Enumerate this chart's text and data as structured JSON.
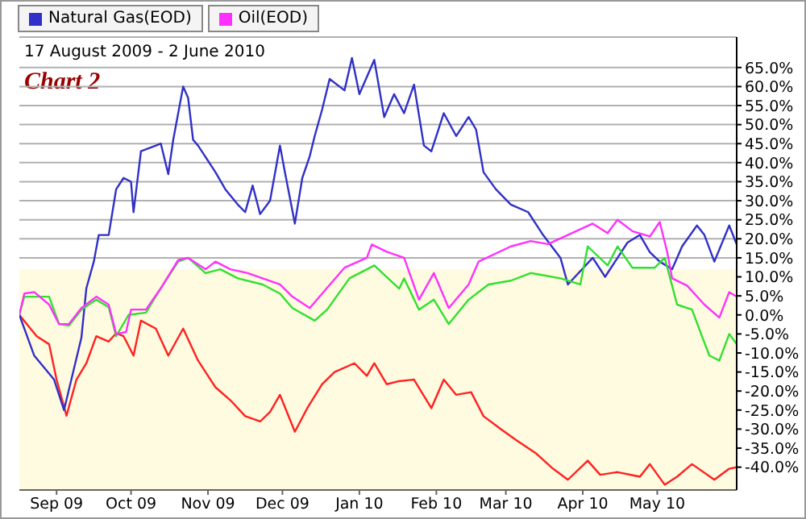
{
  "chart_data": {
    "type": "line",
    "title": "Chart 2",
    "subtitle": "17 August 2009 - 2 June 2010",
    "xlim": [
      "2009-08-17",
      "2010-06-02"
    ],
    "xticks": [
      {
        "value": "2009-09-01",
        "label": "Sep 09"
      },
      {
        "value": "2009-10-01",
        "label": "Oct 09"
      },
      {
        "value": "2009-11-01",
        "label": "Nov 09"
      },
      {
        "value": "2009-12-01",
        "label": "Dec 09"
      },
      {
        "value": "2010-01-01",
        "label": "Jan 10"
      },
      {
        "value": "2010-02-01",
        "label": "Feb 10"
      },
      {
        "value": "2010-03-01",
        "label": "Mar 10"
      },
      {
        "value": "2010-04-01",
        "label": "Apr 10"
      },
      {
        "value": "2010-05-01",
        "label": "May 10"
      }
    ],
    "ylim": [
      -46,
      73
    ],
    "yticks": [
      {
        "value": -40,
        "label": "-40.0%"
      },
      {
        "value": -35,
        "label": "-35.0%"
      },
      {
        "value": -30,
        "label": "-30.0%"
      },
      {
        "value": -25,
        "label": "-25.0%"
      },
      {
        "value": -20,
        "label": "-20.0%"
      },
      {
        "value": -15,
        "label": "-15.0%"
      },
      {
        "value": -10,
        "label": "-10.0%"
      },
      {
        "value": -5,
        "label": "-5.0%"
      },
      {
        "value": 0,
        "label": "0.0%"
      },
      {
        "value": 5,
        "label": "5.0%"
      },
      {
        "value": 10,
        "label": "10.0%"
      },
      {
        "value": 15,
        "label": "15.0%"
      },
      {
        "value": 20,
        "label": "20.0%"
      },
      {
        "value": 25,
        "label": "25.0%"
      },
      {
        "value": 30,
        "label": "30.0%"
      },
      {
        "value": 35,
        "label": "35.0%"
      },
      {
        "value": 40,
        "label": "40.0%"
      },
      {
        "value": 45,
        "label": "45.0%"
      },
      {
        "value": 50,
        "label": "50.0%"
      },
      {
        "value": 55,
        "label": "55.0%"
      },
      {
        "value": 60,
        "label": "60.0%"
      },
      {
        "value": 65,
        "label": "65.0%"
      }
    ],
    "grid": "y",
    "legend": "top",
    "marker": "none",
    "line_style": "solid",
    "bands": [
      {
        "axis": "y",
        "from": -46,
        "to": 12,
        "color": "#fffbe0"
      }
    ],
    "series": [
      {
        "color": "#ff2020",
        "x": [
          "2009-08-17",
          "2009-08-24",
          "2009-08-29",
          "2009-09-01",
          "2009-09-05",
          "2009-09-09",
          "2009-09-13",
          "2009-09-17",
          "2009-09-22",
          "2009-09-25",
          "2009-09-28",
          "2009-10-02",
          "2009-10-05",
          "2009-10-11",
          "2009-10-16",
          "2009-10-22",
          "2009-10-28",
          "2009-11-04",
          "2009-11-10",
          "2009-11-16",
          "2009-11-22",
          "2009-11-26",
          "2009-11-30",
          "2009-12-06",
          "2009-12-11",
          "2009-12-17",
          "2009-12-22",
          "2009-12-30",
          "2010-01-04",
          "2010-01-07",
          "2010-01-12",
          "2010-01-17",
          "2010-01-23",
          "2010-01-30",
          "2010-02-04",
          "2010-02-09",
          "2010-02-15",
          "2010-02-20",
          "2010-02-27",
          "2010-03-05",
          "2010-03-13",
          "2010-03-20",
          "2010-03-26",
          "2010-04-03",
          "2010-04-08",
          "2010-04-15",
          "2010-04-24",
          "2010-04-28",
          "2010-05-04",
          "2010-05-09",
          "2010-05-15",
          "2010-05-24",
          "2010-05-30",
          "2010-06-02"
        ],
        "values": [
          0,
          -5.6,
          -7.7,
          -17,
          -26.5,
          -17,
          -12.7,
          -5.6,
          -7,
          -4.8,
          -5.6,
          -10.7,
          -1.5,
          -3.6,
          -10.7,
          -3.6,
          -12,
          -19,
          -22.4,
          -26.6,
          -28,
          -25.5,
          -21,
          -30.7,
          -24.5,
          -18.2,
          -15,
          -12.7,
          -16,
          -12.7,
          -18.2,
          -17.4,
          -17,
          -24.5,
          -17,
          -21,
          -20.3,
          -26.6,
          -30,
          -32.8,
          -36.3,
          -40.4,
          -43.3,
          -38.3,
          -42,
          -41.3,
          -42.5,
          -39.2,
          -44.6,
          -42.5,
          -39.2,
          -43.3,
          -40.4,
          -40
        ]
      },
      {
        "name": "Natural Gas(EOD)",
        "color": "#3030c8",
        "x": [
          "2009-08-17",
          "2009-08-23",
          "2009-08-31",
          "2009-09-04",
          "2009-09-11",
          "2009-09-13",
          "2009-09-16",
          "2009-09-18",
          "2009-09-22",
          "2009-09-25",
          "2009-09-28",
          "2009-10-01",
          "2009-10-02",
          "2009-10-05",
          "2009-10-11",
          "2009-10-13",
          "2009-10-16",
          "2009-10-18",
          "2009-10-22",
          "2009-10-24",
          "2009-10-26",
          "2009-10-28",
          "2009-11-04",
          "2009-11-08",
          "2009-11-13",
          "2009-11-16",
          "2009-11-19",
          "2009-11-22",
          "2009-11-26",
          "2009-11-30",
          "2009-12-02",
          "2009-12-06",
          "2009-12-09",
          "2009-12-12",
          "2009-12-14",
          "2009-12-17",
          "2009-12-20",
          "2009-12-26",
          "2009-12-29",
          "2010-01-01",
          "2010-01-07",
          "2010-01-11",
          "2010-01-15",
          "2010-01-19",
          "2010-01-23",
          "2010-01-27",
          "2010-01-30",
          "2010-02-04",
          "2010-02-09",
          "2010-02-14",
          "2010-02-17",
          "2010-02-20",
          "2010-02-25",
          "2010-03-03",
          "2010-03-10",
          "2010-03-16",
          "2010-03-23",
          "2010-03-26",
          "2010-04-05",
          "2010-04-10",
          "2010-04-19",
          "2010-04-24",
          "2010-04-28",
          "2010-05-02",
          "2010-05-07",
          "2010-05-11",
          "2010-05-17",
          "2010-05-20",
          "2010-05-24",
          "2010-05-30",
          "2010-06-02"
        ],
        "values": [
          0,
          -10.7,
          -17,
          -25,
          -6,
          7,
          14,
          21,
          21,
          33,
          36,
          35,
          27,
          43,
          44.5,
          45,
          37,
          46,
          60,
          57,
          46,
          44.5,
          37.5,
          33,
          29,
          27,
          34,
          26.5,
          30,
          44.5,
          37.5,
          24,
          36,
          41.7,
          47,
          54,
          62,
          59,
          67.5,
          58,
          67,
          52,
          58,
          53,
          60.5,
          44.5,
          43,
          53,
          47,
          52,
          48.7,
          37.5,
          33,
          29,
          27,
          21,
          15,
          8,
          15,
          10,
          19,
          21,
          16.5,
          14,
          12,
          18,
          23.5,
          21,
          14,
          23.5,
          18.5
        ]
      },
      {
        "color": "#30e030",
        "x": [
          "2009-08-17",
          "2009-08-19",
          "2009-08-29",
          "2009-09-02",
          "2009-09-06",
          "2009-09-11",
          "2009-09-17",
          "2009-09-22",
          "2009-09-25",
          "2009-09-30",
          "2009-10-07",
          "2009-10-13",
          "2009-10-20",
          "2009-10-24",
          "2009-10-31",
          "2009-11-06",
          "2009-11-13",
          "2009-11-23",
          "2009-11-30",
          "2009-12-05",
          "2009-12-14",
          "2009-12-19",
          "2009-12-28",
          "2010-01-07",
          "2010-01-17",
          "2010-01-19",
          "2010-01-25",
          "2010-01-31",
          "2010-02-06",
          "2010-02-14",
          "2010-02-22",
          "2010-03-03",
          "2010-03-11",
          "2010-03-23",
          "2010-03-31",
          "2010-04-03",
          "2010-04-11",
          "2010-04-15",
          "2010-04-21",
          "2010-04-30",
          "2010-05-04",
          "2010-05-09",
          "2010-05-15",
          "2010-05-19",
          "2010-05-22",
          "2010-05-26",
          "2010-05-30",
          "2010-06-02"
        ],
        "values": [
          0,
          4.8,
          4.8,
          -2.4,
          -2.8,
          1.4,
          4,
          2,
          -5.6,
          0,
          0.6,
          7,
          14,
          15,
          11,
          12,
          9.6,
          8,
          5.6,
          1.8,
          -1.5,
          1.4,
          9.6,
          13,
          6.9,
          9.6,
          1.4,
          4,
          -2.4,
          4,
          8,
          9,
          11,
          9.6,
          8,
          18,
          13,
          18,
          12.4,
          12.4,
          15,
          2.7,
          1.4,
          -5.6,
          -10.7,
          -12,
          -5,
          -7.7
        ]
      },
      {
        "name": "Oil(EOD)",
        "color": "#ff30ff",
        "x": [
          "2009-08-17",
          "2009-08-19",
          "2009-08-23",
          "2009-08-29",
          "2009-09-02",
          "2009-09-06",
          "2009-09-11",
          "2009-09-17",
          "2009-09-22",
          "2009-09-25",
          "2009-09-29",
          "2009-10-01",
          "2009-10-07",
          "2009-10-13",
          "2009-10-20",
          "2009-10-24",
          "2009-10-31",
          "2009-11-04",
          "2009-11-10",
          "2009-11-17",
          "2009-11-23",
          "2009-11-30",
          "2009-12-05",
          "2009-12-12",
          "2009-12-17",
          "2009-12-26",
          "2010-01-04",
          "2010-01-06",
          "2010-01-12",
          "2010-01-19",
          "2010-01-25",
          "2010-01-31",
          "2010-02-06",
          "2010-02-14",
          "2010-02-18",
          "2010-03-03",
          "2010-03-11",
          "2010-03-18",
          "2010-04-05",
          "2010-04-11",
          "2010-04-15",
          "2010-04-21",
          "2010-04-28",
          "2010-05-02",
          "2010-05-05",
          "2010-05-07",
          "2010-05-13",
          "2010-05-20",
          "2010-05-26",
          "2010-05-30",
          "2010-06-02"
        ],
        "values": [
          0,
          5.6,
          6,
          2.7,
          -2.4,
          -2.4,
          1.8,
          4.8,
          2.7,
          -5,
          -4.5,
          1.4,
          1.4,
          7,
          14.4,
          15,
          12,
          14,
          12,
          11,
          9.6,
          8,
          4.8,
          1.8,
          5.6,
          12.4,
          15,
          18.5,
          16.6,
          15,
          4,
          11,
          1.8,
          8,
          14,
          18,
          19.4,
          18.6,
          24,
          21.5,
          25,
          22,
          20.6,
          24.4,
          16.5,
          9.6,
          7.7,
          2.7,
          -0.7,
          6,
          4.8
        ]
      }
    ]
  }
}
